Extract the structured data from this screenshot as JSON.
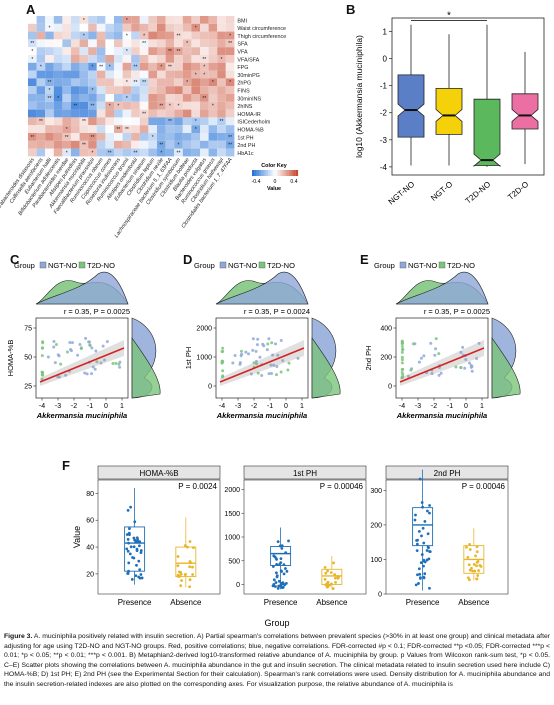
{
  "panels": {
    "A": "A",
    "B": "B",
    "C": "C",
    "D": "D",
    "E": "E",
    "F": "F"
  },
  "heatmap": {
    "rows": [
      "BMI",
      "Waist circumference",
      "Thigh circumference",
      "SFA",
      "VFA",
      "VFA/SFA",
      "FPG",
      "30minPG",
      "2hPG",
      "FINS",
      "30minINS",
      "2hINS",
      "HOMA-IR",
      "ISICederholm",
      "HOMA-%B",
      "1st PH",
      "2nd PH",
      "HbA1c"
    ],
    "cols": [
      "Parabacteroides distasonis",
      "Collinsella aerofaciens",
      "Eubacterium hallii",
      "Bifidobacterium adolescentis",
      "Parabacteroides merdae",
      "Alistipes putredinis",
      "Akkermansia muciniphila",
      "Faecalibacterium prausnitzii",
      "Ruminococcus obeum",
      "Coprococcus comes",
      "Roseburia inulinivorans",
      "Ruminococcus bromii",
      "Alistipes onderdonkii",
      "Eubacterium siraeum",
      "Clostridium leptum",
      "Clostridium nexile",
      "Lachnospiraceae bacterium 5_1_63FAA",
      "Clostridium symbiosum",
      "Clostridium bolteae",
      "Blautia producta",
      "Bacteroides vulgatus",
      "Ruminococcus gnavus",
      "Clostridium hathewayi",
      "Clostridiales bacterium 1_7_47FAA"
    ],
    "key_title": "Color Key",
    "key_ticks": [
      "-0.4",
      "0",
      "0.4"
    ],
    "key_label": "Value"
  },
  "boxplot": {
    "ylabel": "log10 (Akkermansia muciniphila)",
    "ylim": [
      -4.3,
      1.5
    ],
    "yticks": [
      "-4",
      "-3",
      "-2",
      "-1",
      "0",
      "1"
    ],
    "groups": [
      {
        "name": "NGT-NO",
        "color": "#5b7fc7",
        "q1": -2.9,
        "median": -1.9,
        "q3": -0.6,
        "lo": -3.95,
        "hi": 1.25
      },
      {
        "name": "NGT-O",
        "color": "#f5d10a",
        "q1": -2.8,
        "median": -2.1,
        "q3": -1.1,
        "lo": -3.95,
        "hi": 0.9
      },
      {
        "name": "T2D-NO",
        "color": "#5cb85c",
        "q1": -3.95,
        "median": -3.75,
        "q3": -1.5,
        "lo": -4.0,
        "hi": 1.25
      },
      {
        "name": "T2D-O",
        "color": "#ec6fa3",
        "q1": -2.6,
        "median": -2.1,
        "q3": -1.3,
        "lo": -3.9,
        "hi": 0.25
      }
    ],
    "sig": "*"
  },
  "scatter": {
    "group_label": "Group",
    "legend": [
      "NGT-NO",
      "T2D-NO"
    ],
    "xlabel": "Akkermansia muciniphila",
    "xticks": [
      "-4",
      "-3",
      "-2",
      "-1",
      "0",
      "1"
    ],
    "plots": [
      {
        "ylabel": "HOMA-%B",
        "stat": "r = 0.35, P = 0.0025",
        "yticks": [
          "25",
          "50",
          "75"
        ]
      },
      {
        "ylabel": "1st PH",
        "stat": "r = 0.35, P = 0.0024",
        "yticks": [
          "0",
          "1000",
          "2000"
        ]
      },
      {
        "ylabel": "2nd PH",
        "stat": "r = 0.35, P = 0.0025",
        "yticks": [
          "0",
          "200",
          "400"
        ]
      }
    ]
  },
  "groupbox": {
    "ylabel": "Value",
    "xlabel": "Group",
    "xcats": [
      "Presence",
      "Absence"
    ],
    "plots": [
      {
        "title": "HOMA-%B",
        "p": "P = 0.0024",
        "yticks": [
          "20",
          "40",
          "60",
          "80"
        ]
      },
      {
        "title": "1st PH",
        "p": "P = 0.00046",
        "yticks": [
          "0",
          "500",
          "1000",
          "1500",
          "2000"
        ]
      },
      {
        "title": "2nd PH",
        "p": "P = 0.00046",
        "yticks": [
          "0",
          "100",
          "200",
          "300"
        ]
      }
    ]
  },
  "caption": {
    "lead": "Figure 3.",
    "text": " A. muciniphila positively related with insulin secretion. A) Partial spearman's correlations between prevalent species (>30% in at least one group) and clinical metadata after adjusting for age using T2D-NO and NGT-NO groups. Red, positive correlations; blue, negative correlations. FDR-corrected #p < 0.1; FDR-corrected **p <0.05; FDR-corrected ***p < 0.01; *p < 0.05; **p < 0.01; ***p < 0.001. B) Metaphlan2-derived log10-transformed relative abundance of A. muciniphila by group. p Values from Wilcoxon rank-sum test, *p < 0.05. C–E) Scatter plots showing the correlations between A. muciniphila abundance in the gut and insulin secretion. The clinical metadata related to insulin secretion used here include C) HOMA-%B; D) 1st PH; E) 2nd PH (see the Experimental Section for their calculation). Spearman's rank correlations were used. Density distribution for A. muciniphila abundance and the insulin secretion-related indexes are also plotted on the corresponding axes. For visualization purpose, the relative abundance of A. muciniphila is"
  }
}
